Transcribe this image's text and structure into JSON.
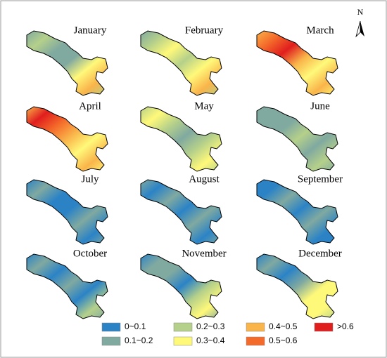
{
  "north_label": "N",
  "months": [
    "January",
    "February",
    "March",
    "April",
    "May",
    "June",
    "July",
    "August",
    "September",
    "October",
    "November",
    "December"
  ],
  "legend": [
    {
      "label": "0~0.1",
      "color": "#2b83c6"
    },
    {
      "label": "0.1~0.2",
      "color": "#80a9a0"
    },
    {
      "label": "0.2~0.3",
      "color": "#b5d08a"
    },
    {
      "label": "0.3~0.4",
      "color": "#fff97a"
    },
    {
      "label": "0.4~0.5",
      "color": "#f9b44a"
    },
    {
      "label": "0.5~0.6",
      "color": "#f46a2a"
    },
    {
      "label": ">0.6",
      "color": "#e01e1e"
    }
  ]
}
